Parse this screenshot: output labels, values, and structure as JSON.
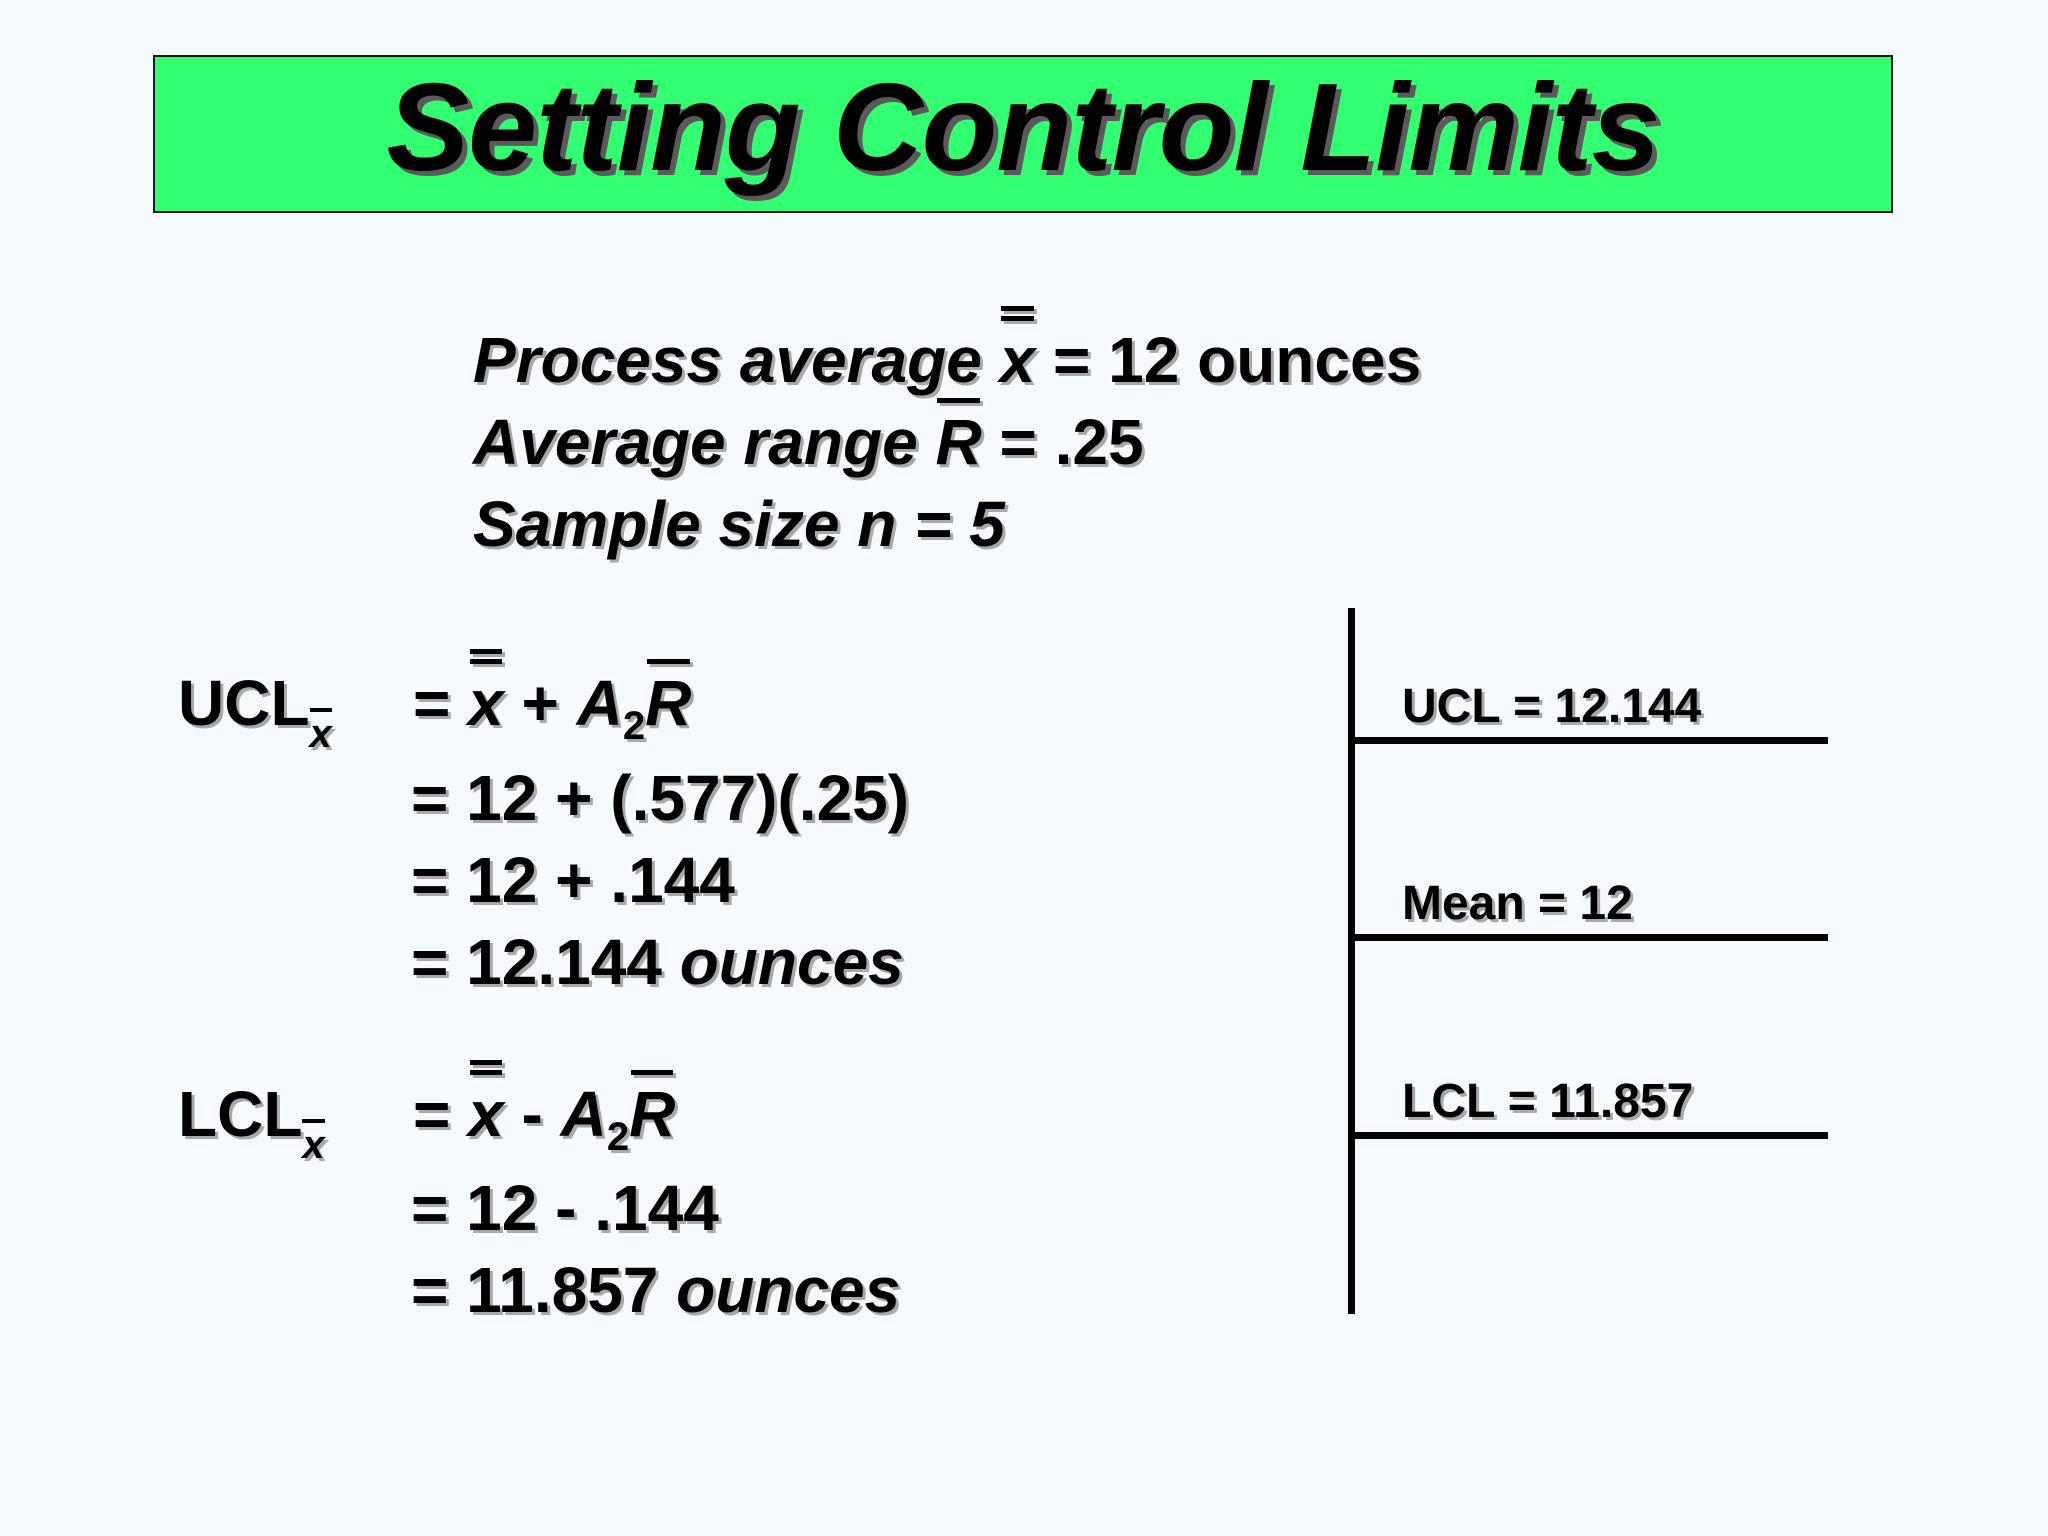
{
  "title": "Setting Control Limits",
  "given": {
    "process_average_label": "Process average",
    "process_average_symbol": "x",
    "process_average_value": "= 12 ounces",
    "average_range_label": "Average range",
    "average_range_symbol": "R",
    "average_range_value": "= .25",
    "sample_size": "Sample size n = 5"
  },
  "ucl": {
    "label": "UCL",
    "subscript": "x",
    "formula": {
      "eq": "=",
      "xbar": "x",
      "plus": "+",
      "a": "A",
      "a_sub": "2",
      "r": "R"
    },
    "step1": "= 12 + (.577)(.25)",
    "step2": "= 12 + .144",
    "result_value": "= 12.144",
    "result_unit": "ounces"
  },
  "lcl": {
    "label": "LCL",
    "subscript": "x",
    "formula": {
      "eq": "=",
      "xbar": "x",
      "minus": "-",
      "a": "A",
      "a_sub": "2",
      "r": "R"
    },
    "step1": "= 12 - .144",
    "result_value": "= 11.857",
    "result_unit": "ounces"
  },
  "chart": {
    "ucl_label": "UCL = 12.144",
    "mean_label": "Mean = 12",
    "lcl_label": "LCL = 11.857"
  }
}
